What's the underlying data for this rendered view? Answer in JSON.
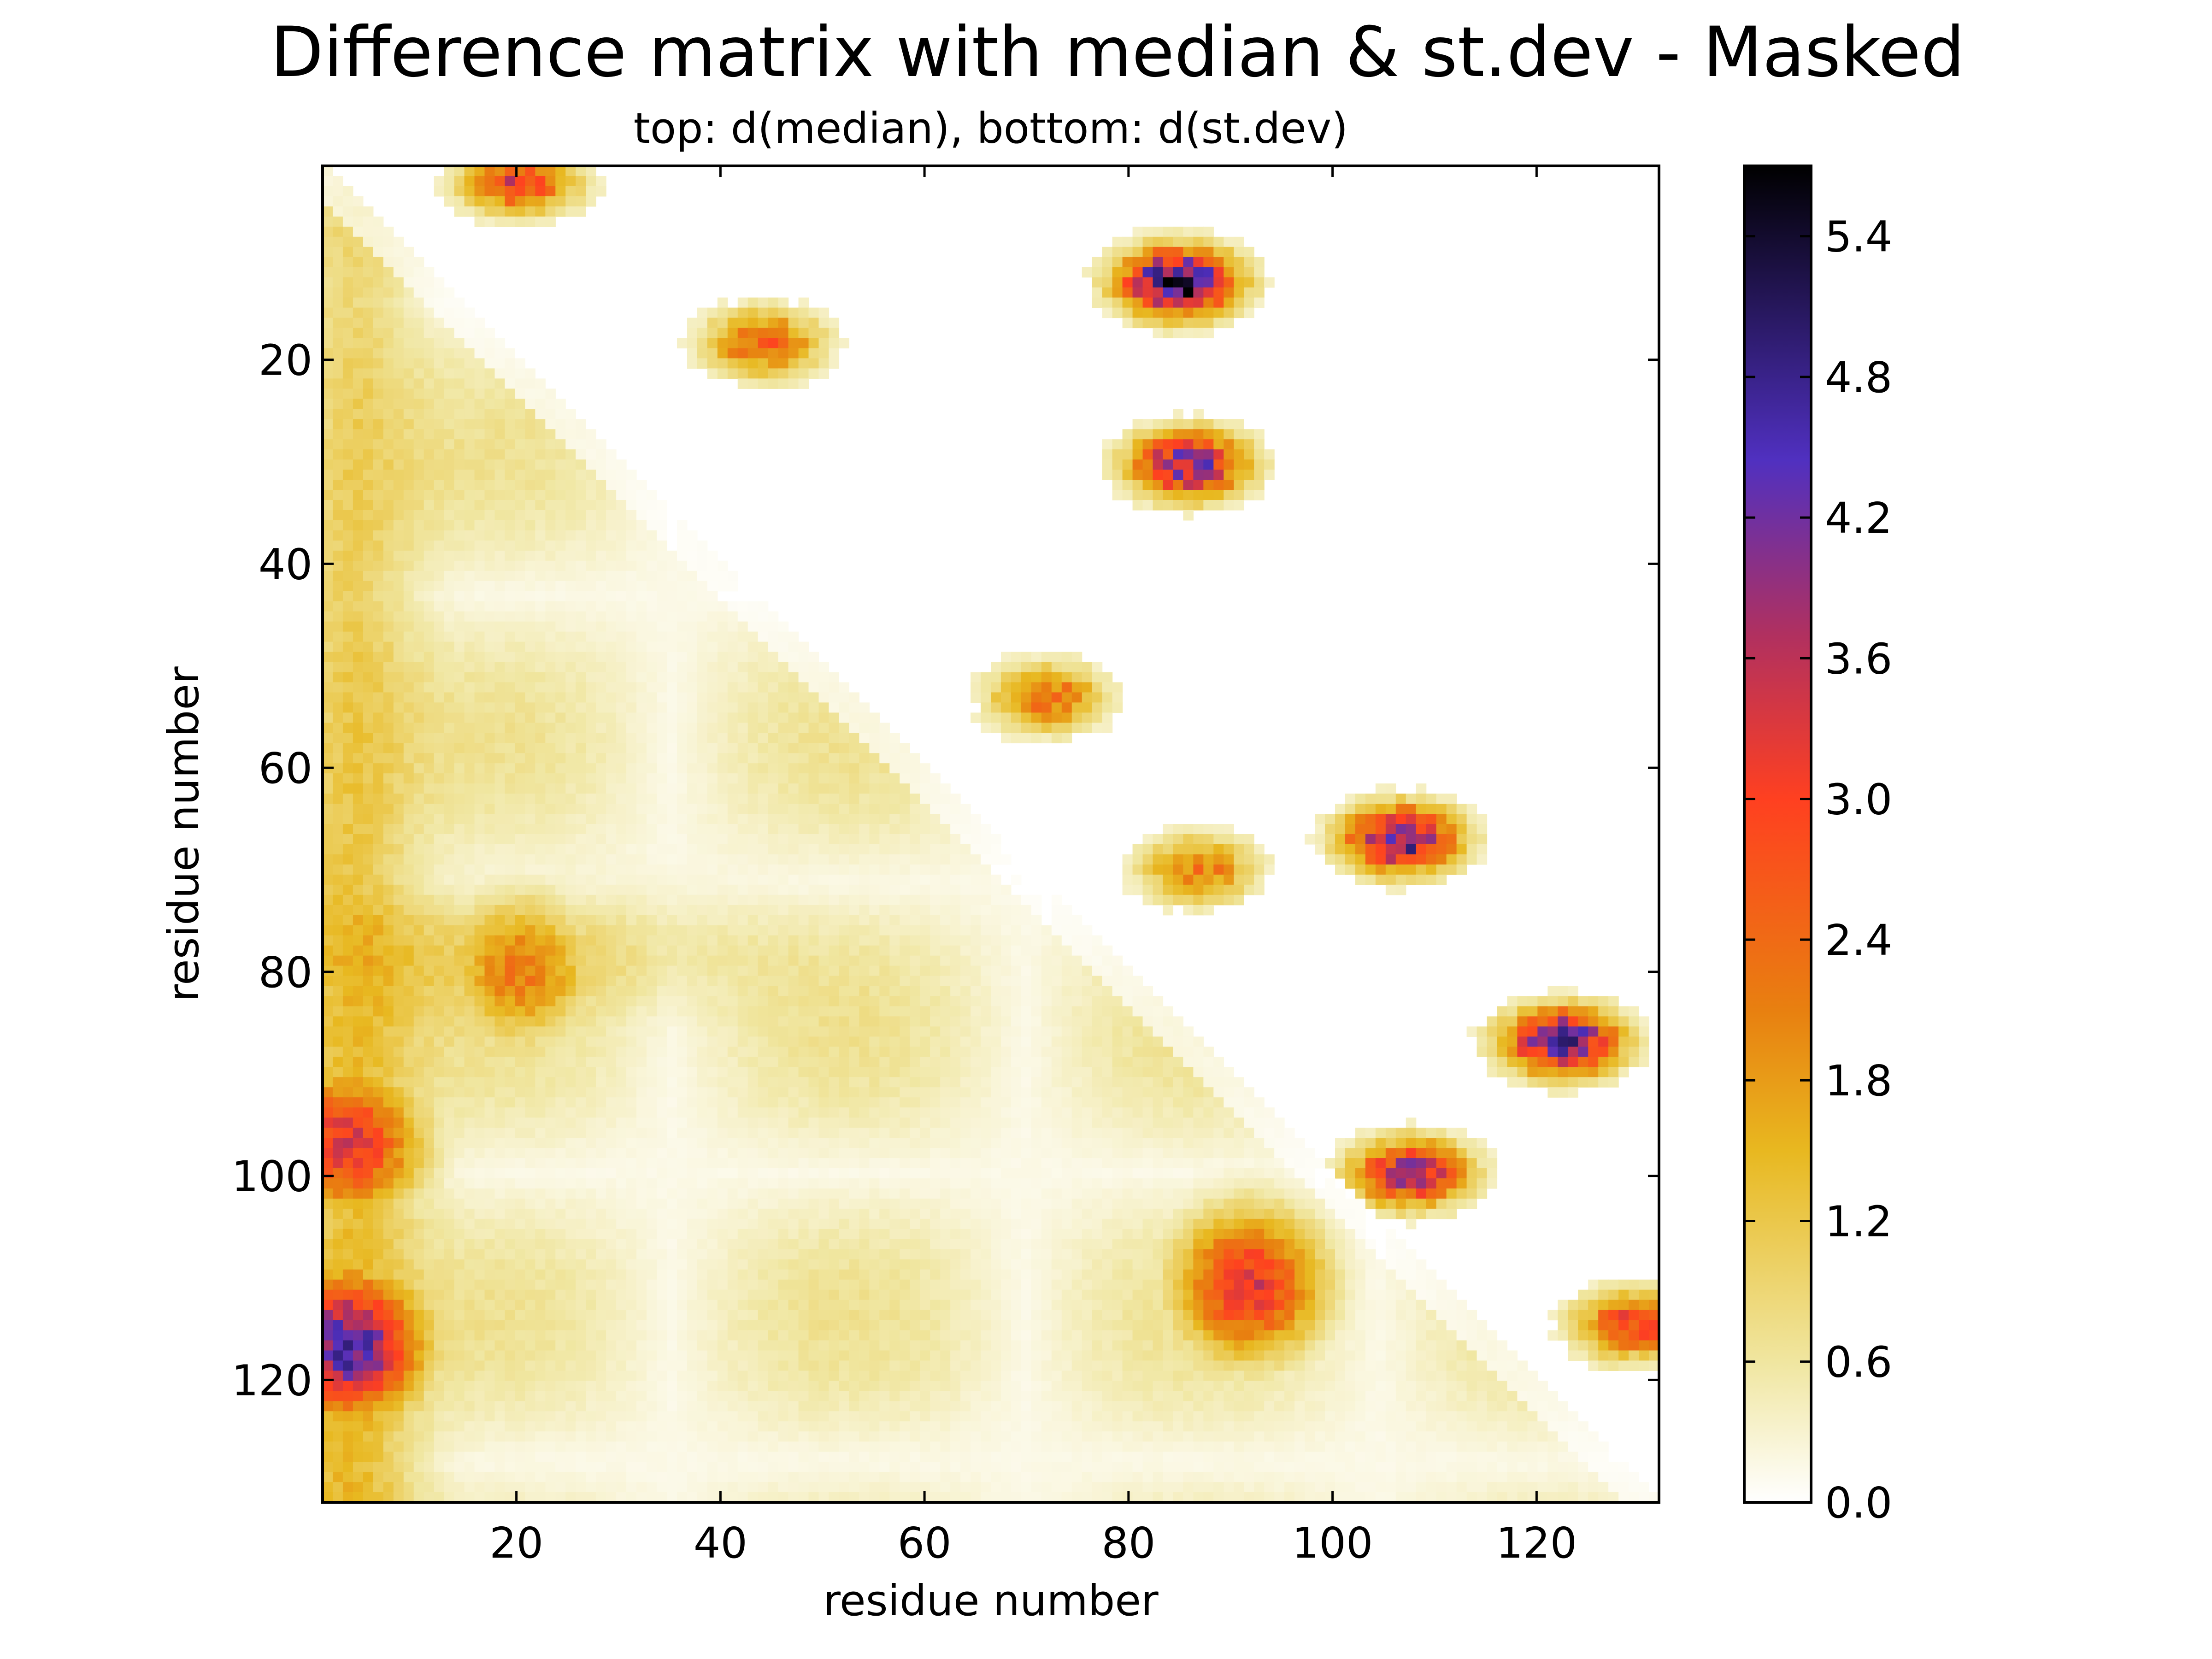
{
  "chart_data": {
    "type": "heatmap",
    "title": "Difference matrix with median & st.dev - Masked",
    "subtitle": "top: d(median),  bottom: d(st.dev)",
    "xlabel": "residue number",
    "ylabel": "residue number",
    "xlim": [
      1,
      132
    ],
    "ylim": [
      132,
      1
    ],
    "x_ticks": [
      "20",
      "40",
      "60",
      "80",
      "100",
      "120"
    ],
    "y_ticks": [
      "20",
      "40",
      "60",
      "80",
      "100",
      "120"
    ],
    "x_tick_values": [
      20,
      40,
      60,
      80,
      100,
      120
    ],
    "y_tick_values": [
      20,
      40,
      60,
      80,
      100,
      120
    ],
    "colorbar": {
      "ticks": [
        "0.0",
        "0.6",
        "1.2",
        "1.8",
        "2.4",
        "3.0",
        "3.6",
        "4.2",
        "4.8",
        "5.4"
      ],
      "tick_values": [
        0.0,
        0.6,
        1.2,
        1.8,
        2.4,
        3.0,
        3.6,
        4.2,
        4.8,
        5.4
      ],
      "range": [
        0.0,
        5.7
      ],
      "colors": [
        "#ffffff",
        "#f0e6a0",
        "#e8b820",
        "#e88010",
        "#ff4020",
        "#b03060",
        "#5030c0",
        "#000000"
      ]
    },
    "upper_triangle_clusters": [
      {
        "name": "d(median) cluster",
        "x": 20,
        "y": 2,
        "value": 3.1
      },
      {
        "name": "d(median) cluster",
        "x": 85,
        "y": 12,
        "value": 5.5
      },
      {
        "name": "d(median) cluster",
        "x": 44,
        "y": 18,
        "value": 2.6
      },
      {
        "name": "d(median) cluster",
        "x": 86,
        "y": 30,
        "value": 4.3
      },
      {
        "name": "d(median) cluster",
        "x": 72,
        "y": 53,
        "value": 2.4
      },
      {
        "name": "d(median) cluster",
        "x": 87,
        "y": 70,
        "value": 2.2
      },
      {
        "name": "d(median) cluster",
        "x": 107,
        "y": 67,
        "value": 4.5
      },
      {
        "name": "d(median) cluster",
        "x": 123,
        "y": 87,
        "value": 4.7
      },
      {
        "name": "d(median) cluster",
        "x": 108,
        "y": 100,
        "value": 3.9
      },
      {
        "name": "d(median) cluster",
        "x": 130,
        "y": 115,
        "value": 3.0
      }
    ],
    "lower_triangle_features": [
      {
        "name": "d(st.dev) hotspot",
        "x": 3,
        "y": 117,
        "value": 4.6
      },
      {
        "name": "d(st.dev) hotspot",
        "x": 3,
        "y": 97,
        "value": 3.3
      },
      {
        "name": "d(st.dev) hotspot",
        "x": 92,
        "y": 111,
        "value": 3.3
      },
      {
        "name": "d(st.dev) band",
        "x": 20,
        "y": 80,
        "value": 2.2
      }
    ]
  }
}
